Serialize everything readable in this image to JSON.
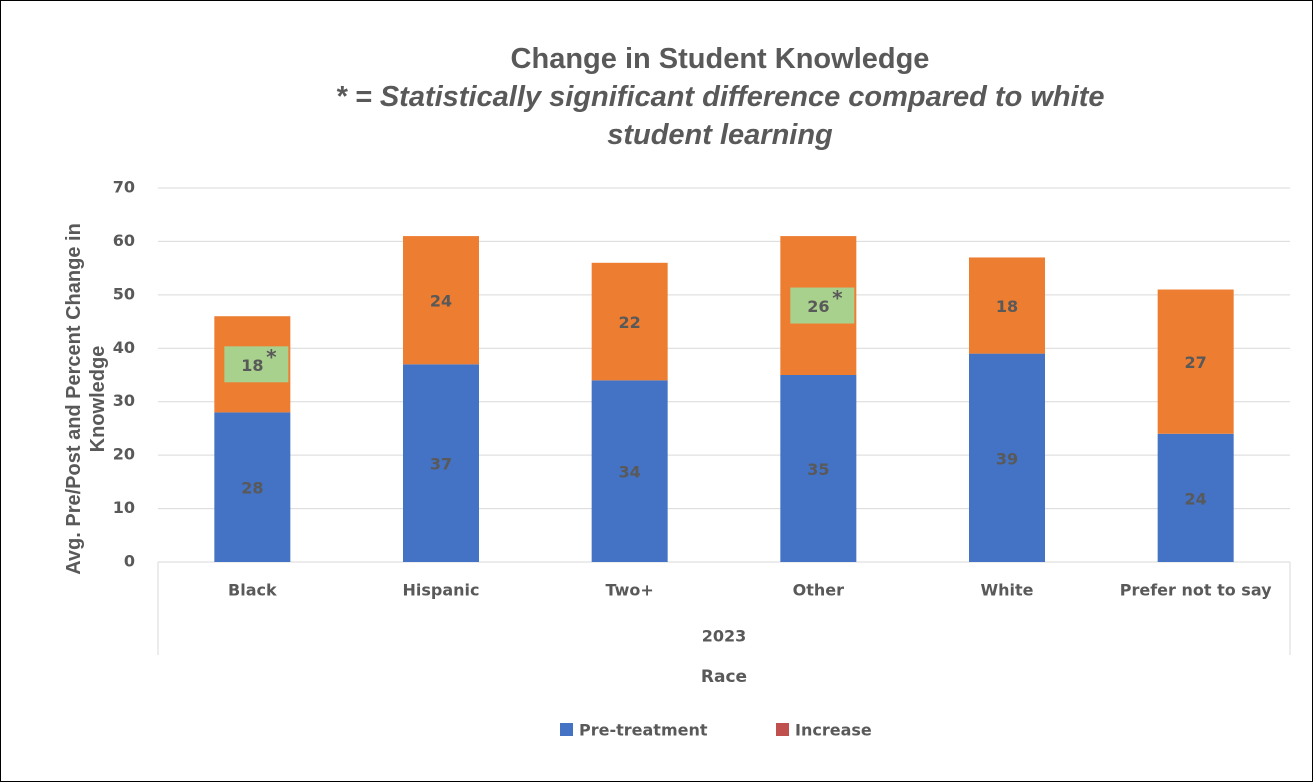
{
  "chart_data": {
    "type": "stacked_bar",
    "title": "Change in Student Knowledge",
    "subtitle": "* = Statistically significant difference compared to white student learning",
    "ylabel": "Avg. Pre/Post and Percent Change in Knowledge",
    "group_label": "2023",
    "xlabel": "Race",
    "categories": [
      "Black",
      "Hispanic",
      "Two+",
      "Other",
      "White",
      "Prefer not to say"
    ],
    "series": [
      {
        "name": "Pre-treatment",
        "color": "#4472c4",
        "legend_color": "#4472c4",
        "values": [
          28,
          37,
          34,
          35,
          39,
          24
        ]
      },
      {
        "name": "Increase",
        "color": "#ed7d31",
        "legend_color": "#c0504d",
        "values": [
          18,
          24,
          22,
          26,
          18,
          27
        ]
      }
    ],
    "significant_markers": [
      {
        "category": "Black",
        "text": "*"
      },
      {
        "category": "Other",
        "text": "*"
      }
    ],
    "highlight_color": "#a9d18e",
    "ylim": [
      0,
      70
    ],
    "yticks": [
      0,
      10,
      20,
      30,
      40,
      50,
      60,
      70
    ],
    "grid": true,
    "legend": "bottom"
  }
}
